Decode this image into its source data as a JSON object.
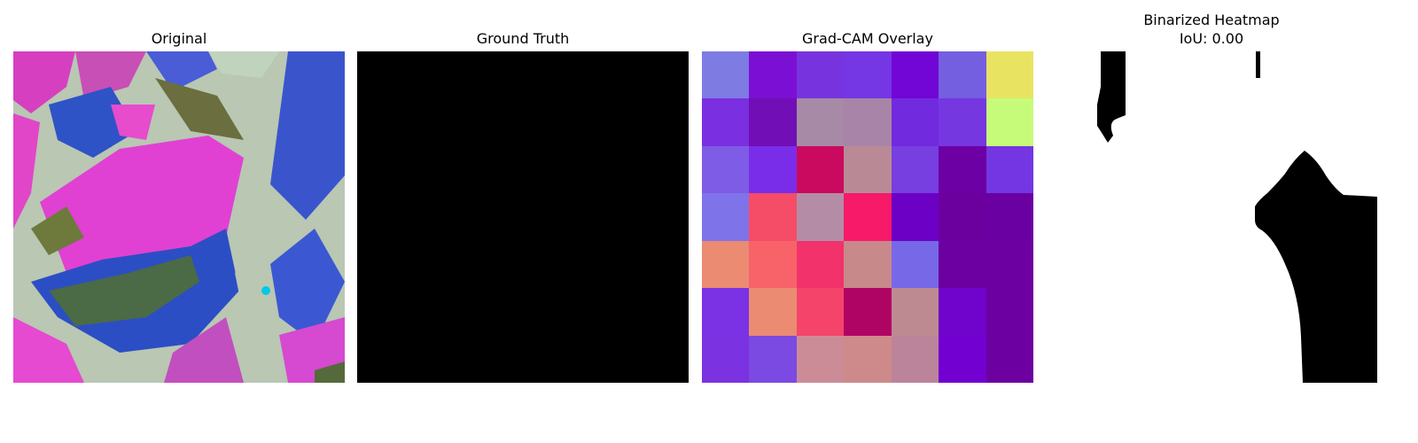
{
  "panels": [
    {
      "title": "Original"
    },
    {
      "title": "Ground Truth"
    },
    {
      "title": "Grad-CAM Overlay"
    },
    {
      "title": "Binarized Heatmap",
      "subtitle": "IoU: 0.00"
    }
  ],
  "gradcam": {
    "grid": [
      [
        "#7e7be2",
        "#7b10d4",
        "#7734de",
        "#7536e4",
        "#7106d6",
        "#745fe0",
        "#e8e462"
      ],
      [
        "#7a2fe1",
        "#720eb6",
        "#a78aa5",
        "#a884a8",
        "#722ade",
        "#7537e0",
        "#c6fb7a"
      ],
      [
        "#7e5ce6",
        "#7a2de8",
        "#ca0a5e",
        "#b98a96",
        "#773ee0",
        "#6c00a5",
        "#7336e2"
      ],
      [
        "#7f73ea",
        "#f54c68",
        "#b48ca6",
        "#f61a68",
        "#6c00c5",
        "#6c009f",
        "#6b00a2"
      ],
      [
        "#ea8b72",
        "#f8636a",
        "#f2326a",
        "#c8898a",
        "#7668e6",
        "#6c00a0",
        "#6c00a0"
      ],
      [
        "#7b31e4",
        "#ea8b72",
        "#f4446a",
        "#b00464",
        "#be8a92",
        "#7003cc",
        "#6c00a0"
      ],
      [
        "#7b32e0",
        "#7b4ae2",
        "#cb8c98",
        "#ce8a8a",
        "#bc849a",
        "#7200d0",
        "#6c00a0"
      ]
    ]
  }
}
